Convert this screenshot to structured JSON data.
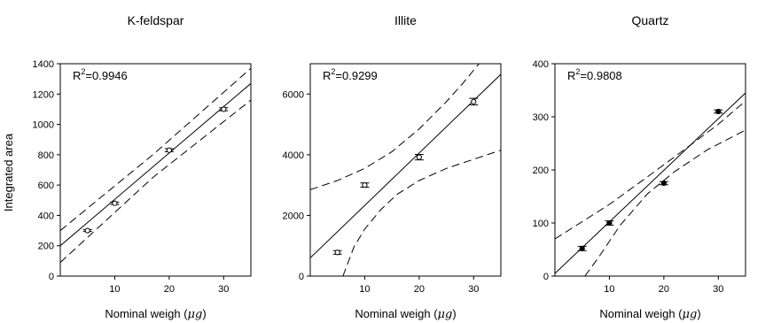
{
  "figure": {
    "y_axis_label": "Integrated area"
  },
  "chart_data": [
    {
      "type": "scatter",
      "title": "K-feldspar",
      "xlabel_main": "Nominal weigh (",
      "xlabel_unit": "μg",
      "xlabel_close": ")",
      "ylabel": "Integrated area",
      "r2_prefix": "R",
      "r2_sup": "2",
      "r2_value": "=0.9946",
      "xlim": [
        0,
        35
      ],
      "ylim": [
        0,
        1400
      ],
      "xticks": [
        10,
        20,
        30
      ],
      "yticks": [
        0,
        200,
        400,
        600,
        800,
        1000,
        1200,
        1400
      ],
      "x": [
        5,
        10,
        20,
        30
      ],
      "y": [
        300,
        480,
        830,
        1100
      ],
      "yerr": [
        6,
        8,
        10,
        10
      ],
      "marker": "open-circle",
      "fit": {
        "x": [
          0,
          35
        ],
        "y": [
          200,
          1270
        ]
      },
      "ci_upper": {
        "x": [
          0,
          17,
          35
        ],
        "y": [
          300,
          800,
          1370
        ]
      },
      "ci_lower": {
        "x": [
          0,
          17,
          35
        ],
        "y": [
          90,
          650,
          1160
        ]
      }
    },
    {
      "type": "scatter",
      "title": "Illite",
      "xlabel_main": "Nominal weigh (",
      "xlabel_unit": "μg",
      "xlabel_close": ")",
      "r2_prefix": "R",
      "r2_sup": "2",
      "r2_value": "=0.9299",
      "xlim": [
        0,
        35
      ],
      "ylim": [
        0,
        7000
      ],
      "xticks": [
        10,
        20,
        30
      ],
      "yticks": [
        0,
        2000,
        4000,
        6000
      ],
      "x": [
        5,
        10,
        20,
        30
      ],
      "y": [
        780,
        3000,
        3920,
        5750
      ],
      "yerr": [
        60,
        70,
        90,
        110
      ],
      "marker": "open-circle",
      "fit": {
        "x": [
          0,
          35
        ],
        "y": [
          600,
          6650
        ]
      },
      "ci_upper": {
        "x": [
          0,
          5,
          10,
          15,
          20,
          25,
          28,
          31
        ],
        "y": [
          2850,
          3150,
          3550,
          4100,
          4850,
          5750,
          6350,
          7000
        ]
      },
      "ci_lower": {
        "x": [
          6,
          8,
          10,
          13,
          16,
          20,
          25,
          30,
          35
        ],
        "y": [
          0,
          950,
          1550,
          2200,
          2700,
          3150,
          3550,
          3850,
          4150
        ]
      }
    },
    {
      "type": "scatter",
      "title": "Quartz",
      "xlabel_main": "Nominal weigh (",
      "xlabel_unit": "μg",
      "xlabel_close": ")",
      "r2_prefix": "R",
      "r2_sup": "2",
      "r2_value": "=0.9808",
      "xlim": [
        0,
        35
      ],
      "ylim": [
        0,
        400
      ],
      "xticks": [
        10,
        20,
        30
      ],
      "yticks": [
        0,
        100,
        200,
        300,
        400
      ],
      "x": [
        5,
        10,
        20,
        30
      ],
      "y": [
        52,
        100,
        175,
        310
      ],
      "yerr": [
        4,
        4,
        3,
        3
      ],
      "marker": "filled-circle",
      "fit": {
        "x": [
          0,
          35
        ],
        "y": [
          5,
          345
        ]
      },
      "ci_upper": {
        "x": [
          0,
          10,
          17,
          24,
          30,
          35
        ],
        "y": [
          70,
          135,
          187,
          240,
          286,
          330
        ]
      },
      "ci_lower": {
        "x": [
          5.5,
          8,
          12,
          17,
          22,
          28,
          35
        ],
        "y": [
          0,
          35,
          96,
          155,
          197,
          238,
          275
        ]
      }
    }
  ]
}
